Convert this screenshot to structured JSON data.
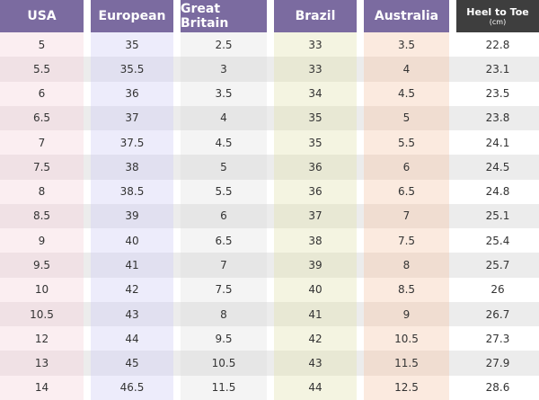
{
  "table": {
    "columns": [
      {
        "label": "USA"
      },
      {
        "label": "European"
      },
      {
        "label": "Great Britain"
      },
      {
        "label": "Brazil"
      },
      {
        "label": "Australia"
      },
      {
        "label": "Heel to Toe",
        "sublabel": "(cm)"
      }
    ],
    "rows": [
      [
        5,
        35,
        2.5,
        33,
        3.5,
        22.8
      ],
      [
        5.5,
        35.5,
        3,
        33,
        4,
        23.1
      ],
      [
        6,
        36,
        3.5,
        34,
        4.5,
        23.5
      ],
      [
        6.5,
        37,
        4,
        35,
        5,
        23.8
      ],
      [
        7,
        37.5,
        4.5,
        35,
        5.5,
        24.1
      ],
      [
        7.5,
        38,
        5,
        36,
        6,
        24.5
      ],
      [
        8,
        38.5,
        5.5,
        36,
        6.5,
        24.8
      ],
      [
        8.5,
        39,
        6,
        37,
        7,
        25.1
      ],
      [
        9,
        40,
        6.5,
        38,
        7.5,
        25.4
      ],
      [
        9.5,
        41,
        7,
        39,
        8,
        25.7
      ],
      [
        10,
        42,
        7.5,
        40,
        8.5,
        26
      ],
      [
        10.5,
        43,
        8,
        41,
        9,
        26.7
      ],
      [
        12,
        44,
        9.5,
        42,
        10.5,
        27.3
      ],
      [
        13,
        45,
        10.5,
        43,
        11.5,
        27.9
      ],
      [
        14,
        46.5,
        11.5,
        44,
        12.5,
        28.6
      ]
    ]
  }
}
